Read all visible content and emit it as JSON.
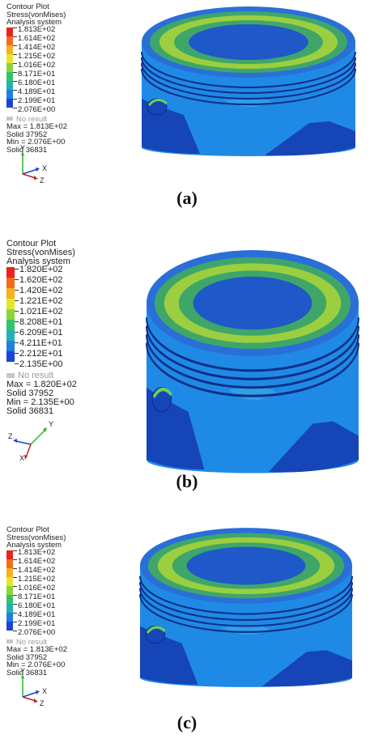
{
  "panels": [
    {
      "caption": "(a)",
      "legend": {
        "title": "Contour Plot",
        "quantity": "Stress(vonMises)",
        "system": "Analysis system",
        "values": [
          "1.813E+02",
          "1.614E+02",
          "1.414E+02",
          "1.215E+02",
          "1.016E+02",
          "8.171E+01",
          "6.180E+01",
          "4.189E+01",
          "2.199E+01",
          "2.076E+00"
        ],
        "no_result": "No result",
        "max": "Max = 1.813E+02",
        "max_solid": "Solid 37952",
        "min": "Min = 2.076E+00",
        "min_solid": "Solid 36831"
      },
      "axes": {
        "up": "Y",
        "right": "X",
        "left": "Z"
      }
    },
    {
      "caption": "(b)",
      "legend": {
        "title": "Contour Plot",
        "quantity": "Stress(vonMises)",
        "system": "Analysis system",
        "values": [
          "1.820E+02",
          "1.620E+02",
          "1.420E+02",
          "1.221E+02",
          "1.021E+02",
          "8.208E+01",
          "6.209E+01",
          "4.211E+01",
          "2.212E+01",
          "2.135E+00"
        ],
        "no_result": "No result",
        "max": "Max = 1.820E+02",
        "max_solid": "Solid 37952",
        "min": "Min = 2.135E+00",
        "min_solid": "Solid 36831"
      },
      "axes": {
        "up": "Y",
        "right": "X",
        "left": "Z"
      }
    },
    {
      "caption": "(c)",
      "legend": {
        "title": "Contour Plot",
        "quantity": "Stress(vonMises)",
        "system": "Analysis system",
        "values": [
          "1.813E+02",
          "1.614E+02",
          "1.414E+02",
          "1.215E+02",
          "1.016E+02",
          "8.171E+01",
          "6.180E+01",
          "4.189E+01",
          "2.199E+01",
          "2.076E+00"
        ],
        "no_result": "No result",
        "max": "Max = 1.813E+02",
        "max_solid": "Solid 37952",
        "min": "Min = 2.076E+00",
        "min_solid": "Solid 36831"
      },
      "axes": {
        "up": "Y",
        "right": "X",
        "left": "Z"
      }
    }
  ],
  "legend_colors": [
    "#e8241c",
    "#f26b1d",
    "#f6b21f",
    "#e6e629",
    "#8ad63a",
    "#33c46a",
    "#1fb3b3",
    "#1f7ee0",
    "#1a44d6",
    "#16168a"
  ],
  "piston_colors": {
    "top_outer": "#2a6fd8",
    "top_ring": "#3fa66a",
    "top_mid": "#9ccf3f",
    "top_center": "#1f58c8",
    "side": "#1f8ae6",
    "side_dark": "#1645b8",
    "groove": "#0f2f86",
    "pin": "#6ad05a"
  }
}
